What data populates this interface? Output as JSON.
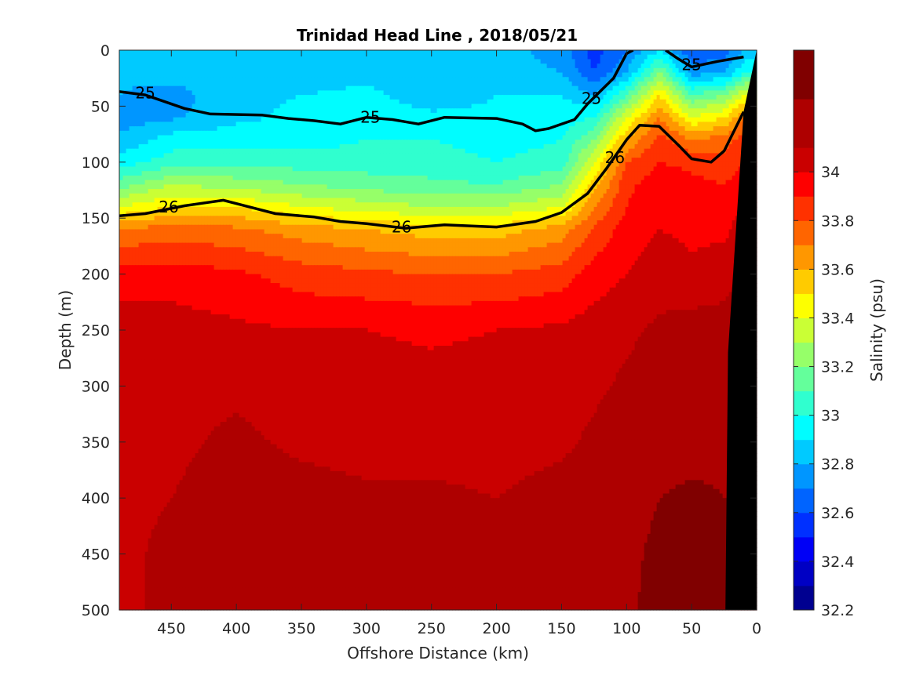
{
  "chart_data": {
    "type": "heatmap",
    "title": "Trinidad Head Line , 2018/05/21",
    "xlabel": "Offshore Distance (km)",
    "ylabel": "Depth (m)",
    "colorbar_label": "Salinity (psu)",
    "x_reversed": true,
    "y_reversed": true,
    "xlim": [
      0,
      490
    ],
    "ylim": [
      0,
      500
    ],
    "x_ticks": [
      450,
      400,
      350,
      300,
      250,
      200,
      150,
      100,
      50,
      0
    ],
    "y_ticks": [
      0,
      50,
      100,
      150,
      200,
      250,
      300,
      350,
      400,
      450,
      500
    ],
    "colorbar_range": [
      32.2,
      34.5
    ],
    "colorbar_ticks": [
      32.2,
      32.4,
      32.6,
      32.8,
      33,
      33.2,
      33.4,
      33.6,
      33.8,
      34
    ],
    "colorbar_levels": [
      {
        "from": 32.2,
        "color": "#000090"
      },
      {
        "from": 32.3,
        "color": "#0000c4"
      },
      {
        "from": 32.4,
        "color": "#0000f6"
      },
      {
        "from": 32.5,
        "color": "#0030ff"
      },
      {
        "from": 32.6,
        "color": "#0064ff"
      },
      {
        "from": 32.7,
        "color": "#0096ff"
      },
      {
        "from": 32.8,
        "color": "#00caff"
      },
      {
        "from": 32.9,
        "color": "#00fdff"
      },
      {
        "from": 33.0,
        "color": "#30ffcf"
      },
      {
        "from": 33.1,
        "color": "#64ff9b"
      },
      {
        "from": 33.2,
        "color": "#96ff69"
      },
      {
        "from": 33.3,
        "color": "#caff35"
      },
      {
        "from": 33.4,
        "color": "#fdff00"
      },
      {
        "from": 33.5,
        "color": "#ffcb00"
      },
      {
        "from": 33.6,
        "color": "#ff9700"
      },
      {
        "from": 33.7,
        "color": "#ff6500"
      },
      {
        "from": 33.8,
        "color": "#ff3100"
      },
      {
        "from": 33.9,
        "color": "#fe0000"
      },
      {
        "from": 34.0,
        "color": "#ca0000"
      },
      {
        "from": 34.1,
        "color": "#ae0000"
      },
      {
        "from": 34.3,
        "color": "#800000"
      }
    ],
    "density_contours": [
      {
        "label": "25",
        "points": [
          [
            490,
            37
          ],
          [
            470,
            40
          ],
          [
            440,
            52
          ],
          [
            420,
            57
          ],
          [
            380,
            58
          ],
          [
            360,
            61
          ],
          [
            340,
            63
          ],
          [
            320,
            66
          ],
          [
            300,
            60
          ],
          [
            280,
            62
          ],
          [
            260,
            66
          ],
          [
            240,
            60
          ],
          [
            200,
            61
          ],
          [
            180,
            66
          ],
          [
            170,
            72
          ],
          [
            160,
            70
          ],
          [
            140,
            62
          ],
          [
            130,
            48
          ],
          [
            110,
            25
          ],
          [
            100,
            3
          ],
          [
            95,
            0
          ]
        ]
      },
      {
        "label": "25",
        "points": [
          [
            70,
            0
          ],
          [
            60,
            8
          ],
          [
            50,
            15
          ],
          [
            30,
            10
          ],
          [
            10,
            6
          ]
        ]
      },
      {
        "label": "26",
        "points": [
          [
            490,
            148
          ],
          [
            470,
            146
          ],
          [
            440,
            139
          ],
          [
            410,
            134
          ],
          [
            390,
            140
          ],
          [
            370,
            146
          ],
          [
            340,
            149
          ],
          [
            320,
            153
          ],
          [
            300,
            155
          ],
          [
            270,
            159
          ],
          [
            240,
            156
          ],
          [
            200,
            158
          ],
          [
            170,
            153
          ],
          [
            150,
            145
          ],
          [
            130,
            128
          ],
          [
            115,
            105
          ],
          [
            100,
            80
          ],
          [
            90,
            67
          ],
          [
            75,
            68
          ],
          [
            60,
            85
          ],
          [
            50,
            97
          ],
          [
            35,
            100
          ],
          [
            25,
            90
          ],
          [
            10,
            55
          ]
        ]
      }
    ],
    "contour_labels": [
      {
        "text": "25",
        "x": 470,
        "y": 38
      },
      {
        "text": "25",
        "x": 297,
        "y": 60
      },
      {
        "text": "25",
        "x": 127,
        "y": 43
      },
      {
        "text": "25",
        "x": 50,
        "y": 13
      },
      {
        "text": "26",
        "x": 452,
        "y": 140
      },
      {
        "text": "26",
        "x": 273,
        "y": 158
      },
      {
        "text": "26",
        "x": 109,
        "y": 96
      }
    ],
    "salinity_field": {
      "x": [
        490,
        450,
        400,
        350,
        300,
        250,
        200,
        150,
        125,
        100,
        75,
        50,
        25,
        10
      ],
      "y": [
        0,
        20,
        40,
        60,
        80,
        100,
        120,
        140,
        160,
        200,
        250,
        300,
        350,
        400,
        450,
        500
      ],
      "values": [
        [
          32.85,
          32.8,
          32.85,
          32.8,
          32.85,
          32.82,
          32.85,
          32.75,
          32.55,
          32.7,
          32.9,
          32.6,
          32.65,
          32.8
        ],
        [
          32.82,
          32.85,
          32.88,
          32.85,
          32.88,
          32.82,
          32.85,
          32.8,
          32.6,
          32.8,
          33.2,
          32.75,
          32.8,
          33.0
        ],
        [
          32.8,
          32.75,
          32.88,
          32.9,
          32.92,
          32.85,
          32.9,
          32.9,
          32.8,
          33.1,
          33.5,
          33.1,
          33.2,
          33.4
        ],
        [
          32.75,
          32.78,
          32.88,
          32.92,
          32.95,
          32.92,
          32.92,
          32.95,
          33.0,
          33.4,
          33.7,
          33.4,
          33.5,
          33.7
        ],
        [
          32.82,
          32.95,
          32.95,
          32.95,
          33.0,
          33.0,
          32.95,
          33.0,
          33.2,
          33.6,
          33.85,
          33.7,
          33.75,
          33.85
        ],
        [
          32.95,
          33.05,
          33.08,
          33.05,
          33.05,
          33.05,
          33.0,
          33.05,
          33.4,
          33.8,
          33.9,
          33.88,
          33.85,
          33.9
        ],
        [
          33.15,
          33.3,
          33.25,
          33.2,
          33.15,
          33.12,
          33.1,
          33.2,
          33.55,
          33.88,
          33.95,
          33.92,
          33.9,
          33.95
        ],
        [
          33.4,
          33.5,
          33.5,
          33.4,
          33.35,
          33.3,
          33.3,
          33.4,
          33.7,
          33.9,
          33.98,
          33.95,
          33.95,
          34.0
        ],
        [
          33.7,
          33.75,
          33.72,
          33.65,
          33.6,
          33.55,
          33.55,
          33.65,
          33.82,
          33.95,
          34.0,
          33.98,
          33.98,
          34.05
        ],
        [
          33.95,
          33.95,
          33.92,
          33.85,
          33.82,
          33.8,
          33.8,
          33.85,
          33.95,
          34.0,
          34.05,
          34.02,
          34.05,
          34.1
        ],
        [
          34.05,
          34.05,
          34.02,
          34.0,
          34.0,
          33.98,
          34.0,
          34.02,
          34.05,
          34.08,
          34.12,
          34.15,
          34.15,
          34.2
        ],
        [
          34.06,
          34.08,
          34.08,
          34.06,
          34.05,
          34.04,
          34.05,
          34.06,
          34.08,
          34.12,
          34.15,
          34.15,
          34.2,
          34.25
        ],
        [
          34.08,
          34.08,
          34.12,
          34.08,
          34.06,
          34.06,
          34.06,
          34.08,
          34.12,
          34.18,
          34.2,
          34.2,
          34.25,
          34.3
        ],
        [
          34.08,
          34.1,
          34.15,
          34.14,
          34.12,
          34.12,
          34.1,
          34.14,
          34.18,
          34.22,
          34.3,
          34.35,
          34.3,
          34.3
        ],
        [
          34.08,
          34.12,
          34.18,
          34.18,
          34.18,
          34.18,
          34.16,
          34.18,
          34.2,
          34.25,
          34.35,
          34.35,
          34.35,
          34.35
        ],
        [
          34.06,
          34.14,
          34.2,
          34.2,
          34.2,
          34.2,
          34.2,
          34.2,
          34.22,
          34.28,
          34.35,
          34.35,
          34.35,
          34.35
        ]
      ]
    },
    "seafloor": [
      [
        0,
        0
      ],
      [
        10,
        55
      ],
      [
        22,
        270
      ],
      [
        24,
        500
      ],
      [
        0,
        500
      ]
    ]
  }
}
